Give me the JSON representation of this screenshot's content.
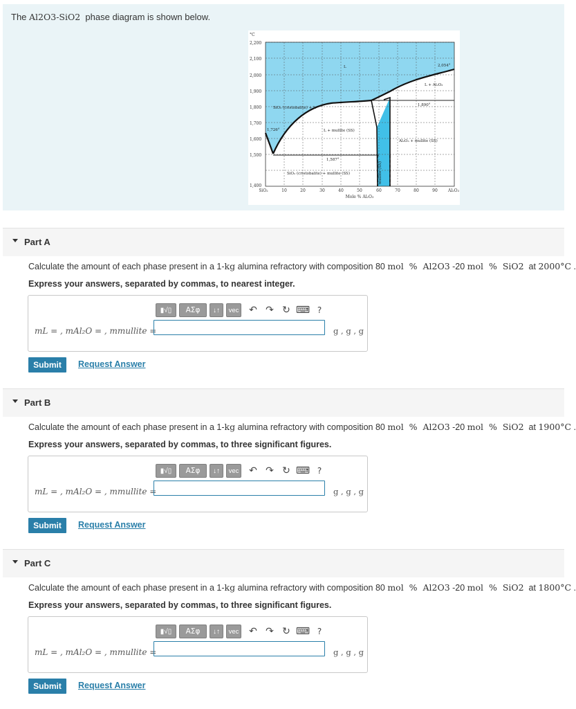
{
  "intro": {
    "prefix": "The ",
    "formula": "Al2O3-SiO2",
    "suffix": "  phase diagram is shown below."
  },
  "diagram": {
    "temp_unit": "°C",
    "y_ticks": [
      "2,200",
      "2,100",
      "2,000",
      "1,900",
      "1,800",
      "1,700",
      "1,600",
      "1,500",
      "1,400"
    ],
    "x_ticks": [
      "SiO₂",
      "10",
      "20",
      "30",
      "40",
      "50",
      "60",
      "70",
      "80",
      "90",
      "Al₂O₃"
    ],
    "x_axis_label": "Mole % Al₂O₃",
    "regions": {
      "liquid": "L",
      "l_al2o3": "L + Al₂O₃",
      "sio2_l": "SiO₂ (cristobalite) + L",
      "l_mullite": "L + mullite (SS)",
      "sio2_mullite": "SiO₂ (cristobalite) + mullite (SS)",
      "al2o3_mullite": "Al₂O₃ + mullite (SS)",
      "mullite": "mullite (SS)"
    },
    "temps": {
      "t2054": "2,054°",
      "t1890": "1,890°",
      "t1726": "1,726°",
      "t1587": "1,587°"
    },
    "colors": {
      "liquid_fill": "#8fd7f0",
      "mullite_fill": "#41c0e8"
    }
  },
  "parts": [
    {
      "title": "Part A",
      "question_pre": "Calculate the amount of each phase present in a 1-",
      "mass_unit": "kg",
      "question_mid": " alumina refractory with composition 80 ",
      "mol_a": "mol  %  Al2O3",
      "sep": " -20 ",
      "mol_b": "mol  %  SiO2",
      "at": "  at ",
      "temp": "2000°C",
      "end": " .",
      "instruction": "Express your answers, separated by commas, to nearest integer.",
      "label": "mL = , mAl₂O = , mmullite =",
      "units": "g , g , g",
      "submit": "Submit",
      "request": "Request Answer"
    },
    {
      "title": "Part B",
      "question_pre": "Calculate the amount of each phase present in a 1-",
      "mass_unit": "kg",
      "question_mid": " alumina refractory with composition 80 ",
      "mol_a": "mol  %  Al2O3",
      "sep": " -20 ",
      "mol_b": "mol  %  SiO2",
      "at": "  at ",
      "temp": "1900°C",
      "end": " .",
      "instruction": "Express your answers, separated by commas, to three significant figures.",
      "label": "mL = , mAl₂O = , mmullite =",
      "units": "g , g , g",
      "submit": "Submit",
      "request": "Request Answer"
    },
    {
      "title": "Part C",
      "question_pre": "Calculate the amount of each phase present in a 1-",
      "mass_unit": "kg",
      "question_mid": " alumina refractory with composition 80 ",
      "mol_a": "mol  %  Al2O3",
      "sep": " -20 ",
      "mol_b": "mol  %  SiO2",
      "at": "  at ",
      "temp": "1800°C",
      "end": " .",
      "instruction": "Express your answers, separated by commas, to three significant figures.",
      "label": "mL = , mAl₂O = , mmullite =",
      "units": "g , g , g",
      "submit": "Submit",
      "request": "Request Answer"
    }
  ],
  "toolbar": {
    "templates": "▮√▯",
    "greek": "ΑΣφ",
    "updown": "↓↑",
    "vec": "vec",
    "undo": "↶",
    "redo": "↷",
    "reset": "↻",
    "keyboard": "⌨",
    "help": "?"
  }
}
